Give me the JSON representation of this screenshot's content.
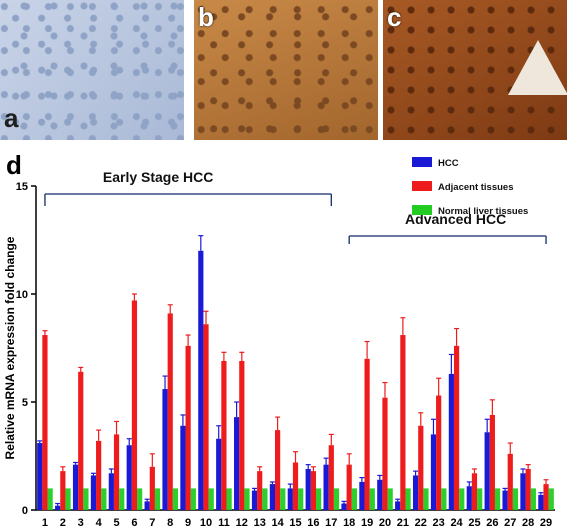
{
  "panels": {
    "a_label": "a",
    "b_label": "b",
    "c_label": "c",
    "d_label": "d"
  },
  "colors": {
    "hcc": "#1a1ad6",
    "adjacent": "#ee1c1c",
    "normal": "#22cc22"
  },
  "chart_data": {
    "type": "bar",
    "ylabel": "Relative mRNA expression fold change",
    "xlabel": "",
    "ylim": [
      0,
      15
    ],
    "yticks": [
      0,
      5,
      10,
      15
    ],
    "categories": [
      "1",
      "2",
      "3",
      "4",
      "5",
      "6",
      "7",
      "8",
      "9",
      "10",
      "11",
      "12",
      "13",
      "14",
      "15",
      "16",
      "17",
      "18",
      "19",
      "20",
      "21",
      "22",
      "23",
      "24",
      "25",
      "26",
      "27",
      "28",
      "29"
    ],
    "series": [
      {
        "name": "HCC",
        "values": [
          3.1,
          0.2,
          2.1,
          1.6,
          1.7,
          3.0,
          0.4,
          5.6,
          3.9,
          12.0,
          3.3,
          4.3,
          0.9,
          1.2,
          1.0,
          1.9,
          2.1,
          0.3,
          1.3,
          1.4,
          0.4,
          1.6,
          3.5,
          6.3,
          1.1,
          3.6,
          0.9,
          1.7,
          0.7
        ],
        "errors": [
          0.1,
          0.1,
          0.1,
          0.1,
          0.2,
          0.3,
          0.1,
          0.6,
          0.5,
          0.7,
          0.6,
          0.7,
          0.1,
          0.1,
          0.2,
          0.2,
          0.3,
          0.1,
          0.2,
          0.2,
          0.1,
          0.2,
          0.7,
          0.9,
          0.2,
          0.6,
          0.1,
          0.2,
          0.1
        ]
      },
      {
        "name": "Adjacent tissues",
        "values": [
          8.1,
          1.8,
          6.4,
          3.2,
          3.5,
          9.7,
          2.0,
          9.1,
          7.6,
          8.6,
          6.9,
          6.9,
          1.8,
          3.7,
          2.2,
          1.8,
          3.0,
          2.1,
          7.0,
          5.2,
          8.1,
          3.9,
          5.3,
          7.6,
          1.7,
          4.4,
          2.6,
          1.9,
          1.2
        ],
        "errors": [
          0.2,
          0.2,
          0.2,
          0.5,
          0.6,
          0.3,
          0.6,
          0.4,
          0.5,
          0.6,
          0.4,
          0.4,
          0.2,
          0.6,
          0.5,
          0.2,
          0.5,
          0.5,
          0.8,
          0.7,
          0.8,
          0.6,
          0.8,
          0.8,
          0.2,
          0.7,
          0.5,
          0.2,
          0.2
        ]
      },
      {
        "name": "Normal liver tissues",
        "values": [
          1,
          1,
          1,
          1,
          1,
          1,
          1,
          1,
          1,
          1,
          1,
          1,
          1,
          1,
          1,
          1,
          1,
          1,
          1,
          1,
          1,
          1,
          1,
          1,
          1,
          1,
          1,
          1,
          1
        ],
        "errors": [
          0,
          0,
          0,
          0,
          0,
          0,
          0,
          0,
          0,
          0,
          0,
          0,
          0,
          0,
          0,
          0,
          0,
          0,
          0,
          0,
          0,
          0,
          0,
          0,
          0,
          0,
          0,
          0,
          0
        ]
      }
    ],
    "legend_position": "top-right",
    "annotations": [
      {
        "text": "Early Stage HCC",
        "from": "1",
        "to": "17"
      },
      {
        "text": "Advanced HCC",
        "from": "18",
        "to": "29"
      }
    ]
  }
}
